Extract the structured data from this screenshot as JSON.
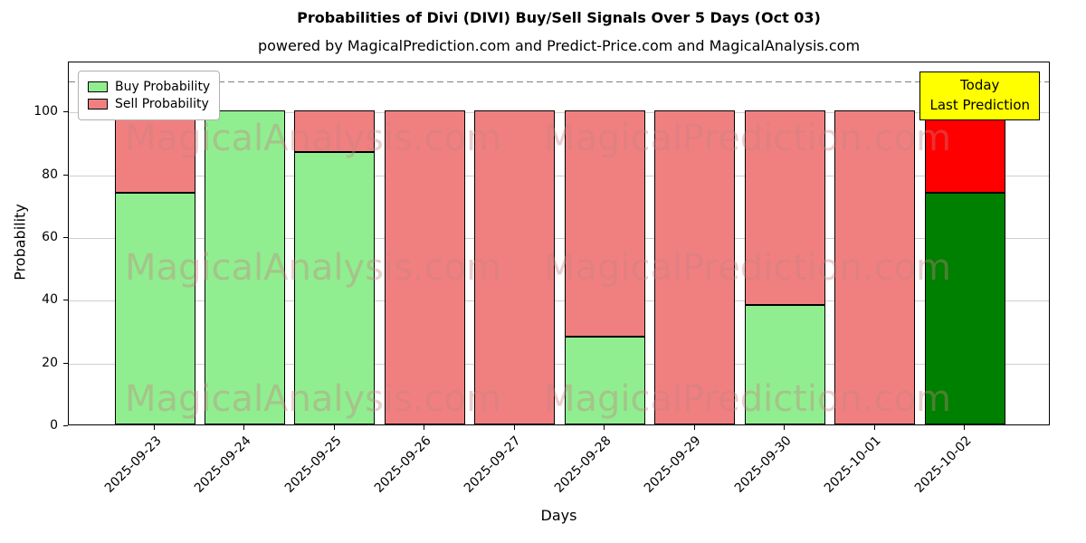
{
  "title": "Probabilities of Divi (DIVI) Buy/Sell Signals Over 5 Days (Oct 03)",
  "subtitle": "powered by MagicalPrediction.com and Predict-Price.com and MagicalAnalysis.com",
  "legend": [
    {
      "label": "Buy Probability",
      "color": "#90ee90"
    },
    {
      "label": "Sell Probability",
      "color": "#f08080"
    }
  ],
  "annotation": {
    "line1": "Today",
    "line2": "Last Prediction",
    "bg_color": "#ffff00"
  },
  "watermarks": [
    "MagicalAnalysis.com",
    "MagicalPrediction.com"
  ],
  "colors": {
    "buy_default": "#90ee90",
    "sell_default": "#f08080",
    "buy_today": "#008000",
    "sell_today": "#ff0000",
    "watermark": "rgba(200,128,128,0.38)",
    "grid": "#cfcfcf",
    "dashed_line": "#7f7f7f"
  },
  "chart_data": {
    "type": "bar",
    "stacked": true,
    "title": "Probabilities of Divi (DIVI) Buy/Sell Signals Over 5 Days (Oct 03)",
    "xlabel": "Days",
    "ylabel": "Probability",
    "categories": [
      "2025-09-23",
      "2025-09-24",
      "2025-09-25",
      "2025-09-26",
      "2025-09-27",
      "2025-09-28",
      "2025-09-29",
      "2025-09-30",
      "2025-10-01",
      "2025-10-02"
    ],
    "series": [
      {
        "name": "Buy Probability",
        "values": [
          74,
          100,
          87,
          0,
          0,
          28,
          0,
          38,
          0,
          74
        ],
        "colors": [
          "#90ee90",
          "#90ee90",
          "#90ee90",
          "#90ee90",
          "#90ee90",
          "#90ee90",
          "#90ee90",
          "#90ee90",
          "#90ee90",
          "#008000"
        ]
      },
      {
        "name": "Sell Probability",
        "values": [
          26,
          0,
          13,
          100,
          100,
          72,
          100,
          62,
          100,
          26
        ],
        "colors": [
          "#f08080",
          "#f08080",
          "#f08080",
          "#f08080",
          "#f08080",
          "#f08080",
          "#f08080",
          "#f08080",
          "#f08080",
          "#ff0000"
        ]
      }
    ],
    "yticks": [
      0,
      20,
      40,
      60,
      80,
      100
    ],
    "ylim": [
      0,
      116
    ],
    "dashed_line_y": 110,
    "grid": true,
    "legend_position": "upper left"
  }
}
